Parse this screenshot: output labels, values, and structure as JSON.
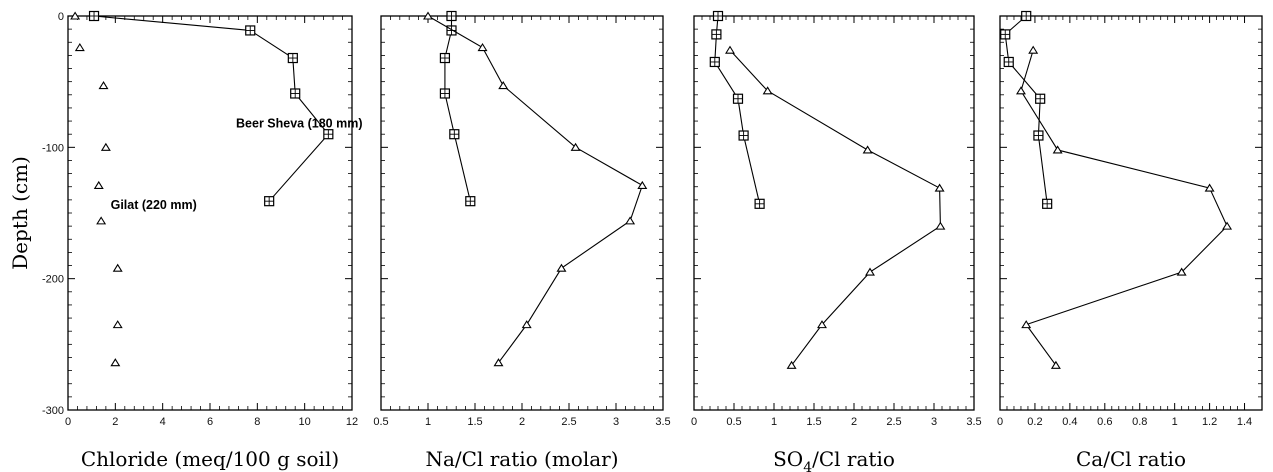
{
  "chart_data": [
    {
      "type": "line",
      "xlabel": "Chloride (meq/100 g soil)",
      "ylabel": "Depth (cm)",
      "xlim": [
        0,
        12
      ],
      "ylim": [
        -300,
        0
      ],
      "xticks": [
        0,
        2,
        4,
        6,
        8,
        10,
        12
      ],
      "yticks": [
        0,
        -100,
        -200,
        -300
      ],
      "annotations": [
        "Beer Sheva (180 mm)",
        "Gilat (220 mm)"
      ],
      "series": [
        {
          "name": "Beer Sheva (180 mm)",
          "marker": "square",
          "connected": true,
          "x": [
            1.1,
            7.7,
            9.5,
            9.6,
            11.0,
            8.5
          ],
          "y": [
            0,
            -11,
            -32,
            -59,
            -90,
            -141
          ]
        },
        {
          "name": "Gilat (220 mm)",
          "marker": "triangle",
          "connected": false,
          "x": [
            0.3,
            0.5,
            1.5,
            1.6,
            1.3,
            1.4,
            2.1,
            2.1,
            2.0
          ],
          "y": [
            0,
            -24,
            -53,
            -100,
            -129,
            -156,
            -192,
            -235,
            -264
          ]
        }
      ]
    },
    {
      "type": "line",
      "xlabel": "Na/Cl ratio (molar)",
      "ylabel": "",
      "xlim": [
        0.5,
        3.5
      ],
      "ylim": [
        -300,
        0
      ],
      "xticks": [
        0.5,
        1,
        1.5,
        2,
        2.5,
        3,
        3.5
      ],
      "yticks": [
        0,
        -100,
        -200,
        -300
      ],
      "series": [
        {
          "name": "Beer Sheva (180 mm)",
          "marker": "square",
          "connected": true,
          "x": [
            1.25,
            1.25,
            1.18,
            1.18,
            1.28,
            1.45
          ],
          "y": [
            0,
            -11,
            -32,
            -59,
            -90,
            -141
          ]
        },
        {
          "name": "Gilat (220 mm)",
          "marker": "triangle",
          "connected": true,
          "x": [
            1.0,
            1.58,
            1.8,
            2.57,
            3.28,
            3.15,
            2.42,
            2.05,
            1.75
          ],
          "y": [
            0,
            -24,
            -53,
            -100,
            -129,
            -156,
            -192,
            -235,
            -264
          ]
        }
      ]
    },
    {
      "type": "line",
      "xlabel": "SO",
      "xlabel_sub": "4",
      "xlabel_rest": "/Cl ratio",
      "ylabel": "",
      "xlim": [
        0,
        3.5
      ],
      "ylim": [
        -300,
        0
      ],
      "xticks": [
        0,
        0.5,
        1,
        1.5,
        2,
        2.5,
        3,
        3.5
      ],
      "yticks": [
        0,
        -100,
        -200,
        -300
      ],
      "series": [
        {
          "name": "Beer Sheva (180 mm)",
          "marker": "square",
          "connected": true,
          "x": [
            0.3,
            0.28,
            0.26,
            0.55,
            0.62,
            0.82
          ],
          "y": [
            0,
            -14,
            -35,
            -63,
            -91,
            -143
          ]
        },
        {
          "name": "Gilat (220 mm)",
          "marker": "triangle",
          "connected": true,
          "x": [
            0.45,
            0.92,
            2.17,
            3.07,
            3.08,
            2.2,
            1.6,
            1.22
          ],
          "y": [
            -26,
            -57,
            -102,
            -131,
            -160,
            -195,
            -235,
            -266
          ]
        }
      ]
    },
    {
      "type": "line",
      "xlabel": "Ca/Cl ratio",
      "ylabel": "",
      "xlim": [
        0,
        1.5
      ],
      "ylim": [
        -300,
        0
      ],
      "xticks": [
        0,
        0.2,
        0.4,
        0.6,
        0.8,
        1,
        1.2,
        1.4
      ],
      "yticks": [
        0,
        -100,
        -200,
        -300
      ],
      "series": [
        {
          "name": "Beer Sheva (180 mm)",
          "marker": "square",
          "connected": true,
          "x": [
            0.15,
            0.03,
            0.05,
            0.23,
            0.22,
            0.27
          ],
          "y": [
            0,
            -14,
            -35,
            -63,
            -91,
            -143
          ]
        },
        {
          "name": "Gilat (220 mm)",
          "marker": "triangle",
          "connected": true,
          "x": [
            0.19,
            0.12,
            0.33,
            1.2,
            1.3,
            1.04,
            0.15,
            0.32
          ],
          "y": [
            -26,
            -57,
            -102,
            -131,
            -160,
            -195,
            -235,
            -266
          ]
        }
      ]
    }
  ]
}
